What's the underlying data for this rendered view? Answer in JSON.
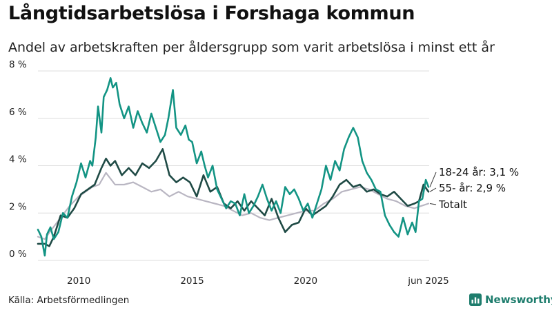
{
  "title": "Långtidsarbetslösa i Forshaga kommun",
  "subtitle": "Andel av arbetskraften per åldersgrupp som varit arbetslösa i minst ett år",
  "source": "Källa: Arbetsförmedlingen",
  "brand": "Newsworthy",
  "chart_data": {
    "type": "line",
    "ylim": [
      0,
      8
    ],
    "xlim": [
      2008.2,
      2025.45
    ],
    "y_ticks": [
      0,
      2,
      4,
      6,
      8
    ],
    "y_tick_labels": [
      "0 %",
      "2 %",
      "4 %",
      "6 %",
      "8 %"
    ],
    "x_ticks": [
      2010,
      2015,
      2020,
      2025.42
    ],
    "x_tick_labels": [
      "2010",
      "2015",
      "2020",
      "jun 2025"
    ],
    "grid": true,
    "series": [
      {
        "name": "Totalt",
        "color": "#b9b6c2",
        "end_label": "Totalt",
        "x": [
          2008.2,
          2008.5,
          2008.8,
          2009.2,
          2009.6,
          2010.0,
          2010.3,
          2010.6,
          2010.9,
          2011.2,
          2011.6,
          2012.0,
          2012.4,
          2012.8,
          2013.2,
          2013.6,
          2014.0,
          2014.4,
          2014.8,
          2015.2,
          2015.6,
          2016.0,
          2016.4,
          2016.8,
          2017.2,
          2017.6,
          2018.0,
          2018.4,
          2018.8,
          2019.2,
          2019.6,
          2020.0,
          2020.4,
          2020.8,
          2021.2,
          2021.6,
          2022.0,
          2022.4,
          2022.8,
          2023.2,
          2023.6,
          2024.0,
          2024.4,
          2024.8,
          2025.1,
          2025.42
        ],
        "values": [
          1.0,
          0.9,
          1.3,
          1.8,
          2.3,
          2.7,
          2.9,
          3.1,
          3.2,
          3.7,
          3.2,
          3.2,
          3.3,
          3.1,
          2.9,
          3.0,
          2.7,
          2.9,
          2.7,
          2.6,
          2.5,
          2.4,
          2.3,
          2.1,
          1.9,
          2.0,
          1.8,
          1.7,
          1.8,
          1.9,
          2.0,
          2.1,
          2.1,
          2.4,
          2.6,
          2.9,
          3.0,
          3.1,
          3.0,
          2.8,
          2.6,
          2.5,
          2.3,
          2.2,
          2.3,
          2.4
        ]
      },
      {
        "name": "55- år",
        "color": "#1f4a45",
        "end_label": "55- år: 2,9 %",
        "x": [
          2008.2,
          2008.5,
          2008.7,
          2008.9,
          2009.2,
          2009.5,
          2009.8,
          2010.1,
          2010.4,
          2010.7,
          2011.0,
          2011.2,
          2011.4,
          2011.6,
          2011.9,
          2012.2,
          2012.5,
          2012.8,
          2013.1,
          2013.4,
          2013.7,
          2014.0,
          2014.3,
          2014.6,
          2014.9,
          2015.2,
          2015.5,
          2015.8,
          2016.1,
          2016.4,
          2016.7,
          2017.0,
          2017.3,
          2017.6,
          2017.9,
          2018.2,
          2018.5,
          2018.8,
          2019.1,
          2019.4,
          2019.7,
          2020.0,
          2020.3,
          2020.6,
          2020.9,
          2021.2,
          2021.5,
          2021.8,
          2022.1,
          2022.4,
          2022.7,
          2023.0,
          2023.3,
          2023.6,
          2023.9,
          2024.2,
          2024.5,
          2024.8,
          2025.0,
          2025.2,
          2025.42
        ],
        "values": [
          0.7,
          0.7,
          0.6,
          1.0,
          1.9,
          1.8,
          2.2,
          2.8,
          3.0,
          3.2,
          3.9,
          4.3,
          4.0,
          4.2,
          3.6,
          3.9,
          3.6,
          4.1,
          3.9,
          4.2,
          4.7,
          3.6,
          3.3,
          3.5,
          3.3,
          2.7,
          3.6,
          2.9,
          3.1,
          2.4,
          2.2,
          2.5,
          2.1,
          2.5,
          2.2,
          1.9,
          2.6,
          1.8,
          1.2,
          1.5,
          1.6,
          2.2,
          1.9,
          2.1,
          2.3,
          2.7,
          3.2,
          3.4,
          3.1,
          3.2,
          2.9,
          3.0,
          2.8,
          2.7,
          2.9,
          2.6,
          2.3,
          2.4,
          2.5,
          3.2,
          2.9
        ]
      },
      {
        "name": "18-24 år",
        "color": "#139484",
        "end_label": "18-24 år: 3,1 %",
        "x": [
          2008.2,
          2008.35,
          2008.5,
          2008.6,
          2008.75,
          2008.9,
          2009.1,
          2009.3,
          2009.5,
          2009.7,
          2009.9,
          2010.1,
          2010.3,
          2010.5,
          2010.6,
          2010.75,
          2010.85,
          2011.0,
          2011.1,
          2011.25,
          2011.4,
          2011.5,
          2011.65,
          2011.8,
          2012.0,
          2012.2,
          2012.4,
          2012.6,
          2012.8,
          2013.0,
          2013.2,
          2013.4,
          2013.6,
          2013.8,
          2013.95,
          2014.15,
          2014.3,
          2014.5,
          2014.7,
          2014.85,
          2015.0,
          2015.2,
          2015.4,
          2015.55,
          2015.7,
          2015.9,
          2016.1,
          2016.3,
          2016.5,
          2016.7,
          2016.9,
          2017.1,
          2017.3,
          2017.5,
          2017.7,
          2017.9,
          2018.1,
          2018.3,
          2018.5,
          2018.7,
          2018.9,
          2019.1,
          2019.3,
          2019.5,
          2019.7,
          2019.9,
          2020.1,
          2020.3,
          2020.5,
          2020.7,
          2020.9,
          2021.1,
          2021.3,
          2021.5,
          2021.7,
          2021.9,
          2022.1,
          2022.3,
          2022.5,
          2022.7,
          2022.9,
          2023.1,
          2023.3,
          2023.5,
          2023.7,
          2023.9,
          2024.1,
          2024.3,
          2024.5,
          2024.7,
          2024.85,
          2025.0,
          2025.15,
          2025.3,
          2025.42
        ],
        "values": [
          1.3,
          1.0,
          0.2,
          1.1,
          1.4,
          0.9,
          1.2,
          2.0,
          1.8,
          2.7,
          3.3,
          4.1,
          3.5,
          4.2,
          4.0,
          5.2,
          6.5,
          5.4,
          6.9,
          7.2,
          7.7,
          7.3,
          7.5,
          6.6,
          6.0,
          6.5,
          5.6,
          6.3,
          5.8,
          5.4,
          6.2,
          5.6,
          5.0,
          5.3,
          6.0,
          7.2,
          5.6,
          5.3,
          5.7,
          5.1,
          5.0,
          4.1,
          4.6,
          4.0,
          3.5,
          4.0,
          3.0,
          2.6,
          2.2,
          2.5,
          2.4,
          1.9,
          2.8,
          2.0,
          2.3,
          2.7,
          3.2,
          2.6,
          2.1,
          2.5,
          2.0,
          3.1,
          2.8,
          3.0,
          2.6,
          2.1,
          2.4,
          1.8,
          2.4,
          3.0,
          4.0,
          3.4,
          4.2,
          3.8,
          4.7,
          5.2,
          5.6,
          5.2,
          4.2,
          3.7,
          3.4,
          3.0,
          2.9,
          1.9,
          1.5,
          1.2,
          1.0,
          1.8,
          1.1,
          1.6,
          1.2,
          2.5,
          2.6,
          3.4,
          3.1
        ]
      }
    ]
  }
}
